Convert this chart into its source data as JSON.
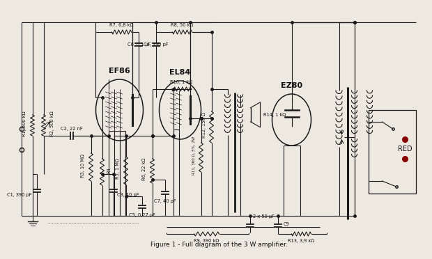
{
  "title": "Figure 1 - Full diagram of the 3 W amplifier.",
  "bg_color": "#ede8e0",
  "line_color": "#1a1a1a",
  "text_color": "#111111",
  "labels": {
    "R1": "R1, 500 kΩ",
    "R2": "R2, 500 kΩ",
    "R3": "R3, 10 MΩ",
    "R4": "R4",
    "R5": "R5, 1 MΩ",
    "R6": "R6, 22 kΩ",
    "R7": "R7, 6,8 kΩ",
    "R8": "R8, 50 kΩ",
    "R9": "R9, 390 kΩ",
    "R10": "R10, 1 kΩ",
    "R11": "R11, 360 Ω, 5%, 2W",
    "R12": "R12, 150 Ω",
    "R13": "R13, 3,9 kΩ",
    "R14": "R14, 1 kΩ",
    "C1": "C1, 390 pF",
    "C2": "C2, 22 nF",
    "C3": "C3, 40 pF",
    "C4": "C4, 390 pF",
    "C5": "C5, 0,27 μF",
    "C6": "C6, 0,1 μF",
    "C7": "C7, 40 pF",
    "C8": "2 x 50 μF",
    "C9": "C9",
    "tube_ef86": "EF86",
    "tube_el84": "EL84",
    "tube_ez80": "EZ80",
    "red": "RED"
  }
}
